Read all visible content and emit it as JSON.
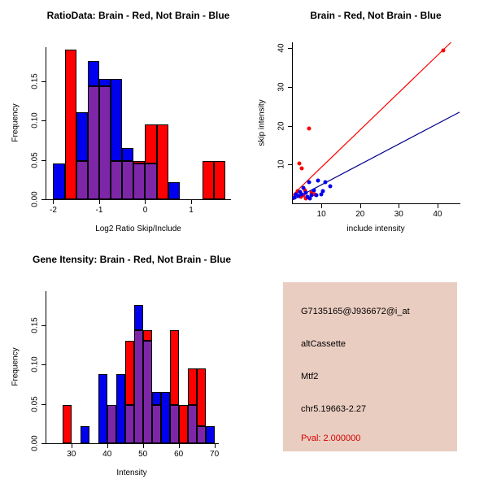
{
  "colors": {
    "red": "#FF0000",
    "blue": "#0000EE",
    "overlap": "#7D26A8",
    "fit_line_red": "#FF0000",
    "fit_line_blue": "#00008B",
    "axis": "#000000"
  },
  "chart_data": [
    {
      "id": "ratio_hist",
      "type": "histogram",
      "title": "RatioData: Brain - Red, Not Brain - Blue",
      "xlabel": "Log2 Ratio Skip/Include",
      "ylabel": "Frequency",
      "bin_start": -2.0,
      "bin_width": 0.25,
      "series": [
        {
          "name": "Brain",
          "color": "red",
          "values": [
            0,
            0.19,
            0.048,
            0.143,
            0.143,
            0.048,
            0.048,
            0.048,
            0.095,
            0.095,
            0,
            0,
            0,
            0.048,
            0.048
          ]
        },
        {
          "name": "Not Brain",
          "color": "blue",
          "values": [
            0.045,
            0,
            0.11,
            0.175,
            0.153,
            0.153,
            0.065,
            0.045,
            0.045,
            0,
            0.022,
            0,
            0,
            0,
            0
          ]
        }
      ],
      "xlim": [
        -2.15,
        1.85
      ],
      "ylim": [
        0,
        0.193
      ],
      "xticks": [
        -2,
        -1,
        0,
        1
      ],
      "xtick_labels": [
        "-2",
        "-1",
        "0",
        "1"
      ],
      "yticks": [
        0,
        0.05,
        0.1,
        0.15
      ],
      "ytick_labels": [
        "0.00",
        "0.05",
        "0.10",
        "0.15"
      ],
      "grid": false
    },
    {
      "id": "scatter",
      "type": "scatter",
      "title": "Brain - Red, Not Brain - Blue",
      "xlabel": "include intensity",
      "ylabel": "skip intensity",
      "xlim": [
        2.6,
        45.7
      ],
      "ylim": [
        0,
        41.5
      ],
      "xticks": [
        10,
        20,
        30,
        40
      ],
      "xtick_labels": [
        "10",
        "20",
        "30",
        "40"
      ],
      "yticks": [
        10,
        20,
        30,
        40
      ],
      "ytick_labels": [
        "10",
        "20",
        "30",
        "40"
      ],
      "series": [
        {
          "name": "Brain",
          "color": "red",
          "points": [
            [
              3.2,
              2.2
            ],
            [
              3.8,
              3.2
            ],
            [
              4.3,
              10.3
            ],
            [
              5,
              9
            ],
            [
              4.6,
              1.6
            ],
            [
              5.4,
              2
            ],
            [
              5.8,
              3.4
            ],
            [
              6,
              1.3
            ],
            [
              6.8,
              19.3
            ],
            [
              7.4,
              2.8
            ],
            [
              8.2,
              2.3
            ],
            [
              41.5,
              39.5
            ]
          ]
        },
        {
          "name": "Not Brain",
          "color": "blue",
          "points": [
            [
              3,
              1.4
            ],
            [
              3.5,
              2.4
            ],
            [
              4,
              1.9
            ],
            [
              4.4,
              3
            ],
            [
              4.9,
              2.3
            ],
            [
              5.3,
              3.9
            ],
            [
              5.9,
              2.7
            ],
            [
              6.4,
              1.6
            ],
            [
              6.9,
              5.4
            ],
            [
              7.1,
              1.2
            ],
            [
              7.5,
              2.1
            ],
            [
              8,
              3.4
            ],
            [
              8.6,
              2
            ],
            [
              9.2,
              5.9
            ],
            [
              9.9,
              2.4
            ],
            [
              10.4,
              3.1
            ],
            [
              11,
              5.5
            ],
            [
              12.2,
              4.3
            ]
          ]
        }
      ],
      "fit_lines": [
        {
          "name": "brain-fit",
          "color": "fit_line_red",
          "x1": 2.6,
          "y1": 2.2,
          "x2": 43.5,
          "y2": 41.5
        },
        {
          "name": "not-brain-fit",
          "color": "fit_line_blue",
          "x1": 2.6,
          "y1": 0.9,
          "x2": 45.7,
          "y2": 23.5
        }
      ],
      "grid": false
    },
    {
      "id": "gene_hist",
      "type": "histogram",
      "title": "Gene Itensity: Brain - Red, Not Brain - Blue",
      "xlabel": "Intensity",
      "ylabel": "Frequency",
      "bin_start": 27.5,
      "bin_width": 2.5,
      "series": [
        {
          "name": "Brain",
          "color": "red",
          "values": [
            0.048,
            0,
            0,
            0,
            0,
            0.048,
            0,
            0.13,
            0.143,
            0.143,
            0.048,
            0,
            0.143,
            0.048,
            0.095,
            0.095,
            0
          ]
        },
        {
          "name": "Not Brain",
          "color": "blue",
          "values": [
            0,
            0,
            0.022,
            0,
            0.088,
            0.048,
            0.088,
            0.048,
            0.175,
            0.13,
            0.065,
            0.065,
            0.048,
            0,
            0.048,
            0.022,
            0.022
          ]
        }
      ],
      "xlim": [
        23,
        71
      ],
      "ylim": [
        0,
        0.193
      ],
      "xticks": [
        30,
        40,
        50,
        60,
        70
      ],
      "xtick_labels": [
        "30",
        "40",
        "50",
        "60",
        "70"
      ],
      "yticks": [
        0,
        0.05,
        0.1,
        0.15
      ],
      "ytick_labels": [
        "0.00",
        "0.05",
        "0.10",
        "0.15"
      ],
      "grid": false
    }
  ],
  "info_panel": {
    "bg_color": "#EACDC1",
    "lines": [
      {
        "text": "G7135165@J936672@i_at",
        "color": "#000000"
      },
      {
        "text": "altCassette",
        "color": "#000000"
      },
      {
        "text": "Mtf2",
        "color": "#000000"
      },
      {
        "text": "chr5.19663-2.27",
        "color": "#000000"
      },
      {
        "text": "Pval: 2.000000",
        "color": "#D40000"
      }
    ]
  }
}
